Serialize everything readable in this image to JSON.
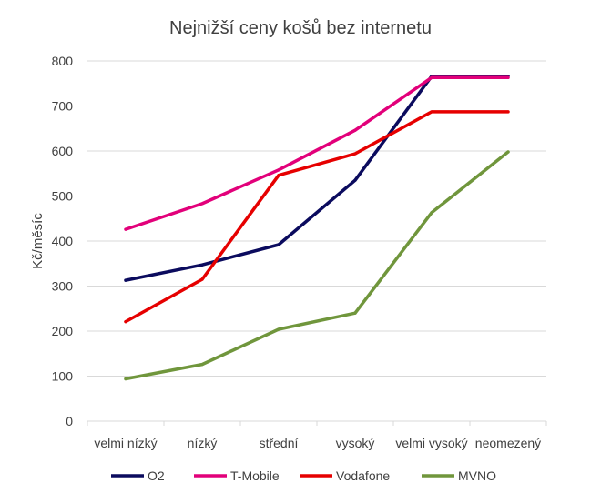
{
  "chart_data": {
    "type": "line",
    "title": "Nejnižší ceny košů bez internetu",
    "ylabel": "Kč/měsíc",
    "xlabel": "",
    "categories": [
      "velmi nízký",
      "nízký",
      "střední",
      "vysoký",
      "velmi vysoký",
      "neomezený"
    ],
    "ylim": [
      0,
      800
    ],
    "yticks": [
      0,
      100,
      200,
      300,
      400,
      500,
      600,
      700,
      800
    ],
    "grid": true,
    "legend_position": "bottom",
    "series": [
      {
        "name": "O2",
        "color": "#0b0b5e",
        "values": [
          313,
          347,
          392,
          535,
          766,
          766
        ]
      },
      {
        "name": "T-Mobile",
        "color": "#e2007a",
        "values": [
          426,
          483,
          558,
          646,
          763,
          763
        ]
      },
      {
        "name": "Vodafone",
        "color": "#e60000",
        "values": [
          221,
          315,
          546,
          594,
          687,
          687
        ]
      },
      {
        "name": "MVNO",
        "color": "#70963c",
        "values": [
          94,
          126,
          204,
          240,
          463,
          598
        ]
      }
    ]
  }
}
